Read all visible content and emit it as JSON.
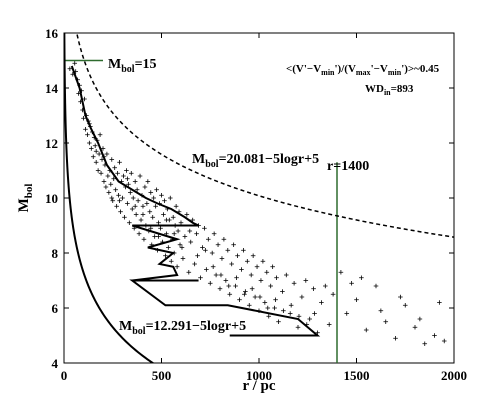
{
  "chart_data": {
    "type": "scatter",
    "title": "",
    "xlabel": "r / pc",
    "ylabel": "M_bol",
    "xlim": [
      0,
      2000
    ],
    "ylim": [
      4,
      16
    ],
    "xticks": [
      0,
      500,
      1000,
      1500,
      2000
    ],
    "yticks": [
      4,
      6,
      8,
      10,
      12,
      14,
      16
    ],
    "grid": false,
    "marker": "+",
    "annotations": {
      "mbol15": {
        "main": "M",
        "sub": "bol",
        "rest": "=15"
      },
      "upper_curve": {
        "main": "M",
        "sub": "bol",
        "rest": "=20.081−5logr+5"
      },
      "lower_curve": {
        "main": "M",
        "sub": "bol",
        "rest": "=12.291−5logr+5"
      },
      "r1400": "r=1400",
      "ratio": {
        "p1": "<(V'−V",
        "s1": "min",
        "p2": "')/(V",
        "s2": "max",
        "p3": "'−V",
        "s3": "min",
        "p4": "')>~0.45"
      },
      "wd": {
        "main": "WD",
        "sub": "in",
        "rest": "=893"
      }
    },
    "lines": {
      "horizontal_mbol15": {
        "x": [
          0,
          200
        ],
        "y": [
          15,
          15
        ]
      },
      "vertical_r1400": {
        "x": [
          1400,
          1400
        ],
        "y": [
          4,
          11.3
        ]
      },
      "upper_curve": {
        "formula": "M_bol = 20.081 - 5 log10(r) + 5",
        "r_range": [
          1,
          2000
        ],
        "style": "dashed"
      },
      "lower_curve": {
        "formula": "M_bol = 12.291 - 5 log10(r) + 5",
        "r_range": [
          1,
          1340
        ],
        "style": "solid"
      },
      "mean_track": {
        "x": [
          40,
          80,
          110,
          140,
          175,
          220,
          280,
          350,
          420,
          480,
          550,
          620,
          660,
          690,
          350,
          580,
          430,
          560,
          490,
          560,
          580,
          350,
          690,
          350,
          520,
          840,
          1200,
          1300,
          850,
          1300
        ],
        "y": [
          14.8,
          14.0,
          13.0,
          12.5,
          12.0,
          11.2,
          10.6,
          10.3,
          10.0,
          9.8,
          9.6,
          9.3,
          9.1,
          9.0,
          9.0,
          8.5,
          8.2,
          8.0,
          7.6,
          7.5,
          7.2,
          7.0,
          7.0,
          7.0,
          6.1,
          6.1,
          5.6,
          5.0,
          5.0,
          5.0
        ]
      }
    },
    "series": [
      {
        "points": [
          [
            30,
            14.7
          ],
          [
            45,
            14.5
          ],
          [
            55,
            14.9
          ],
          [
            60,
            14.6
          ],
          [
            70,
            14.3
          ],
          [
            75,
            13.8
          ],
          [
            80,
            14.1
          ],
          [
            85,
            13.5
          ],
          [
            90,
            13.9
          ],
          [
            95,
            13.2
          ],
          [
            100,
            12.9
          ],
          [
            105,
            13.6
          ],
          [
            110,
            12.5
          ],
          [
            115,
            13.0
          ],
          [
            120,
            12.3
          ],
          [
            125,
            12.8
          ],
          [
            130,
            12.0
          ],
          [
            135,
            12.6
          ],
          [
            140,
            11.8
          ],
          [
            145,
            12.4
          ],
          [
            150,
            11.5
          ],
          [
            155,
            12.2
          ],
          [
            160,
            11.9
          ],
          [
            165,
            11.3
          ],
          [
            170,
            12.1
          ],
          [
            175,
            11.0
          ],
          [
            180,
            11.6
          ],
          [
            185,
            12.3
          ],
          [
            190,
            10.9
          ],
          [
            195,
            11.4
          ],
          [
            200,
            11.8
          ],
          [
            205,
            10.6
          ],
          [
            210,
            11.2
          ],
          [
            215,
            10.4
          ],
          [
            220,
            11.6
          ],
          [
            225,
            10.8
          ],
          [
            230,
            10.2
          ],
          [
            235,
            11.0
          ],
          [
            240,
            10.5
          ],
          [
            245,
            11.4
          ],
          [
            250,
            9.9
          ],
          [
            255,
            10.7
          ],
          [
            260,
            11.1
          ],
          [
            265,
            10.3
          ],
          [
            270,
            9.7
          ],
          [
            275,
            10.9
          ],
          [
            280,
            10.1
          ],
          [
            285,
            11.3
          ],
          [
            290,
            9.5
          ],
          [
            295,
            10.6
          ],
          [
            300,
            10.0
          ],
          [
            305,
            10.8
          ],
          [
            310,
            9.3
          ],
          [
            315,
            10.4
          ],
          [
            320,
            11.0
          ],
          [
            325,
            9.8
          ],
          [
            330,
            10.5
          ],
          [
            335,
            9.1
          ],
          [
            340,
            10.2
          ],
          [
            345,
            10.9
          ],
          [
            350,
            9.6
          ],
          [
            355,
            10.0
          ],
          [
            360,
            8.9
          ],
          [
            365,
            10.6
          ],
          [
            370,
            9.4
          ],
          [
            375,
            10.3
          ],
          [
            380,
            9.9
          ],
          [
            385,
            8.7
          ],
          [
            390,
            10.8
          ],
          [
            395,
            9.2
          ],
          [
            400,
            10.1
          ],
          [
            405,
            9.7
          ],
          [
            410,
            8.5
          ],
          [
            415,
            10.4
          ],
          [
            420,
            9.0
          ],
          [
            425,
            9.8
          ],
          [
            430,
            10.6
          ],
          [
            435,
            8.8
          ],
          [
            440,
            9.5
          ],
          [
            445,
            10.2
          ],
          [
            450,
            8.3
          ],
          [
            455,
            9.3
          ],
          [
            460,
            10.0
          ],
          [
            465,
            8.6
          ],
          [
            470,
            9.7
          ],
          [
            475,
            10.3
          ],
          [
            480,
            8.1
          ],
          [
            485,
            9.1
          ],
          [
            490,
            9.8
          ],
          [
            495,
            8.9
          ],
          [
            500,
            10.1
          ],
          [
            505,
            8.4
          ],
          [
            510,
            9.4
          ],
          [
            515,
            9.9
          ],
          [
            520,
            7.9
          ],
          [
            525,
            8.7
          ],
          [
            530,
            9.6
          ],
          [
            535,
            8.2
          ],
          [
            540,
            9.2
          ],
          [
            545,
            10.0
          ],
          [
            550,
            7.7
          ],
          [
            555,
            8.5
          ],
          [
            560,
            9.3
          ],
          [
            565,
            8.0
          ],
          [
            570,
            9.0
          ],
          [
            575,
            9.7
          ],
          [
            580,
            7.5
          ],
          [
            585,
            8.8
          ],
          [
            590,
            9.5
          ],
          [
            595,
            8.3
          ],
          [
            600,
            9.1
          ],
          [
            610,
            7.8
          ],
          [
            620,
            8.6
          ],
          [
            630,
            9.4
          ],
          [
            640,
            7.3
          ],
          [
            650,
            8.4
          ],
          [
            660,
            9.2
          ],
          [
            670,
            7.6
          ],
          [
            680,
            8.7
          ],
          [
            690,
            9.0
          ],
          [
            700,
            7.1
          ],
          [
            710,
            8.2
          ],
          [
            720,
            8.9
          ],
          [
            730,
            7.4
          ],
          [
            740,
            8.5
          ],
          [
            750,
            6.9
          ],
          [
            760,
            8.0
          ],
          [
            770,
            8.7
          ],
          [
            780,
            7.2
          ],
          [
            790,
            8.3
          ],
          [
            800,
            6.7
          ],
          [
            810,
            7.8
          ],
          [
            820,
            8.5
          ],
          [
            830,
            7.0
          ],
          [
            840,
            8.1
          ],
          [
            850,
            6.5
          ],
          [
            860,
            7.6
          ],
          [
            870,
            8.3
          ],
          [
            880,
            6.8
          ],
          [
            890,
            7.9
          ],
          [
            900,
            6.3
          ],
          [
            910,
            7.4
          ],
          [
            920,
            8.1
          ],
          [
            930,
            6.6
          ],
          [
            940,
            7.7
          ],
          [
            950,
            6.1
          ],
          [
            960,
            7.2
          ],
          [
            970,
            7.9
          ],
          [
            980,
            6.4
          ],
          [
            990,
            7.5
          ],
          [
            1000,
            5.9
          ],
          [
            1010,
            7.0
          ],
          [
            1020,
            7.7
          ],
          [
            1030,
            6.2
          ],
          [
            1040,
            7.3
          ],
          [
            1050,
            5.7
          ],
          [
            1060,
            6.8
          ],
          [
            1070,
            7.5
          ],
          [
            1080,
            6.0
          ],
          [
            1090,
            7.1
          ],
          [
            1100,
            5.5
          ],
          [
            1120,
            6.6
          ],
          [
            1140,
            7.2
          ],
          [
            1160,
            5.8
          ],
          [
            1180,
            6.9
          ],
          [
            1200,
            5.3
          ],
          [
            1220,
            6.4
          ],
          [
            1240,
            7.0
          ],
          [
            1260,
            5.6
          ],
          [
            1280,
            6.7
          ],
          [
            1300,
            5.1
          ],
          [
            1320,
            6.2
          ],
          [
            1340,
            6.8
          ],
          [
            1360,
            5.4
          ],
          [
            1380,
            6.5
          ],
          [
            1420,
            7.3
          ],
          [
            1450,
            5.8
          ],
          [
            1500,
            6.3
          ],
          [
            1550,
            5.2
          ],
          [
            1600,
            6.8
          ],
          [
            1650,
            5.5
          ],
          [
            1700,
            4.9
          ],
          [
            1750,
            6.1
          ],
          [
            1800,
            5.3
          ],
          [
            1850,
            4.7
          ],
          [
            1900,
            5.0
          ],
          [
            1950,
            4.8
          ],
          [
            130,
            12.7
          ],
          [
            165,
            11.7
          ],
          [
            205,
            11.5
          ],
          [
            245,
            10.0
          ],
          [
            285,
            9.9
          ],
          [
            325,
            10.7
          ],
          [
            365,
            9.7
          ],
          [
            405,
            9.4
          ],
          [
            445,
            8.9
          ],
          [
            485,
            8.6
          ],
          [
            525,
            9.2
          ],
          [
            565,
            8.7
          ],
          [
            605,
            8.2
          ],
          [
            645,
            8.8
          ],
          [
            685,
            7.9
          ],
          [
            725,
            8.1
          ],
          [
            765,
            7.5
          ],
          [
            805,
            7.2
          ],
          [
            845,
            6.8
          ],
          [
            885,
            7.1
          ],
          [
            925,
            6.5
          ],
          [
            965,
            6.7
          ],
          [
            1005,
            6.4
          ],
          [
            1045,
            6.0
          ],
          [
            1085,
            6.3
          ],
          [
            1125,
            5.9
          ],
          [
            1165,
            6.1
          ],
          [
            1205,
            5.7
          ],
          [
            1245,
            5.4
          ],
          [
            1285,
            5.8
          ],
          [
            1475,
            6.9
          ],
          [
            1525,
            7.1
          ],
          [
            1625,
            5.9
          ],
          [
            1725,
            6.4
          ],
          [
            1825,
            5.6
          ],
          [
            1925,
            6.2
          ]
        ]
      }
    ]
  }
}
